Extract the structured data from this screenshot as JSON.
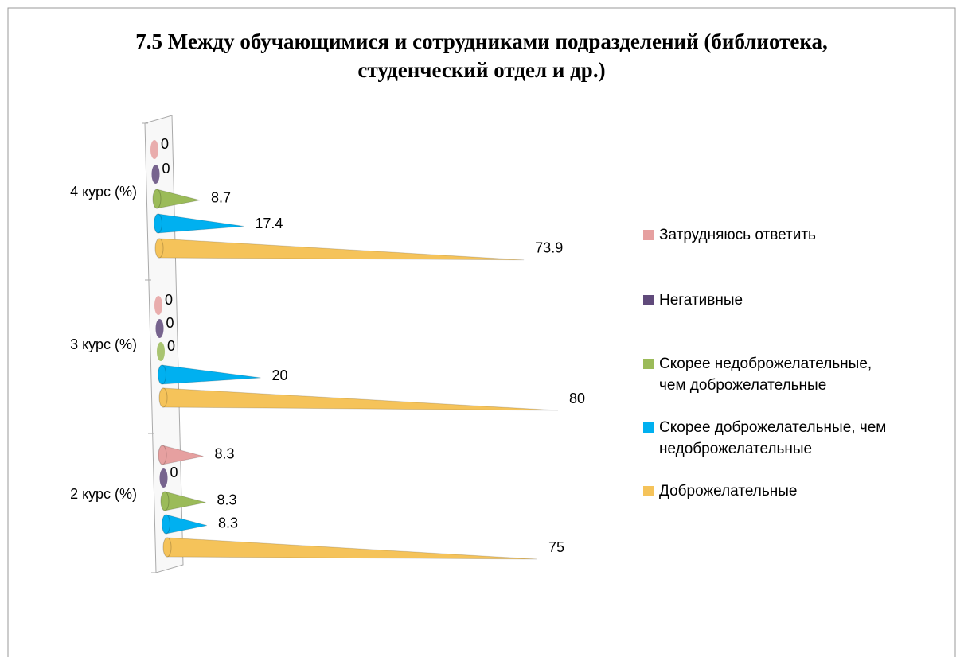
{
  "chart_data": {
    "type": "cone-bar-horizontal",
    "title": "7.5 Между обучающимися и сотрудниками подразделений (библиотека, студенческий отдел и др.)",
    "categories": [
      "2 курс (%)",
      "3 курс (%)",
      "4 курс (%)"
    ],
    "series": [
      {
        "name": "Доброжелательные",
        "color": "#f5c35a",
        "values": [
          75,
          80,
          73.9
        ]
      },
      {
        "name": "Скорее доброжелательные, чем недоброжелательные",
        "color": "#00b0f0",
        "values": [
          8.3,
          20,
          17.4
        ]
      },
      {
        "name": "Скорее недоброжелательные, чем доброжелательные",
        "color": "#9bbb59",
        "values": [
          8.3,
          0,
          8.7
        ]
      },
      {
        "name": "Негативные",
        "color": "#604a7b",
        "values": [
          0,
          0,
          0
        ]
      },
      {
        "name": "Затрудняюсь ответить",
        "color": "#e6a0a0",
        "values": [
          8.3,
          0,
          0
        ]
      }
    ],
    "legend": "right"
  }
}
